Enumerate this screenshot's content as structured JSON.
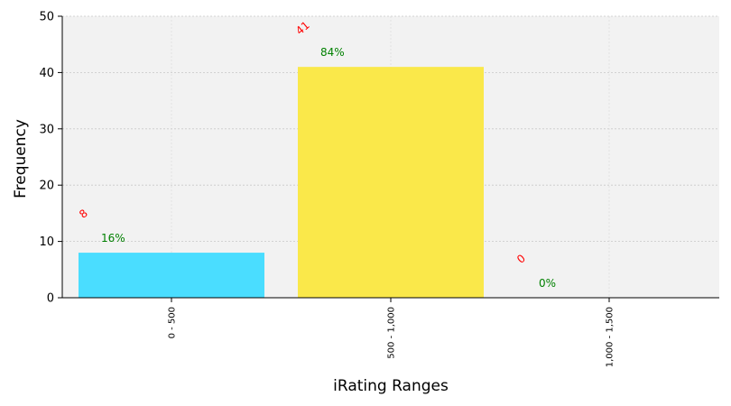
{
  "chart_data": {
    "type": "bar",
    "categories": [
      "0 - 500",
      "500 - 1,000",
      "1,000 - 1,500"
    ],
    "values": [
      8,
      41,
      0
    ],
    "percent_labels": [
      "16%",
      "84%",
      "0%"
    ],
    "count_labels": [
      "8",
      "41",
      "0"
    ],
    "bar_colors": [
      "#4ADDFF",
      "#FAE84A",
      "#FFFFFF"
    ],
    "count_label_color": "#FF0000",
    "percent_label_color": "#008000",
    "plot_background": "#F2F2F2",
    "xlabel": "iRating Ranges",
    "ylabel": "Frequency",
    "ylim": [
      0,
      50
    ],
    "yticks": [
      0,
      10,
      20,
      30,
      40,
      50
    ],
    "grid": true,
    "legend": "none"
  }
}
